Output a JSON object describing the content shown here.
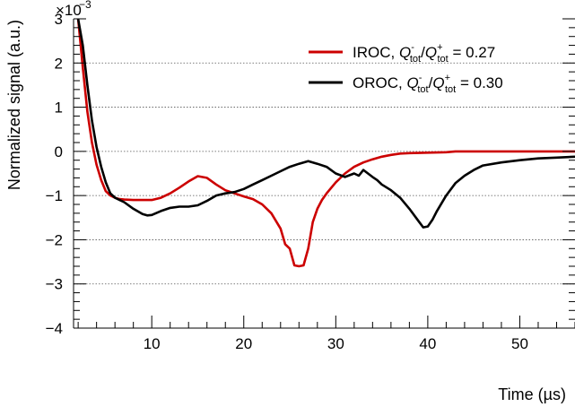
{
  "chart_data": {
    "type": "line",
    "xlabel": "Time (µs)",
    "ylabel": "Normalized signal (a.u.)",
    "y_exponent_label": "×10",
    "y_exponent_power": "−3",
    "xlim": [
      1.5,
      56
    ],
    "ylim": [
      -4,
      3
    ],
    "x_ticks": [
      10,
      20,
      30,
      40,
      50
    ],
    "x_tick_labels": [
      "10",
      "20",
      "30",
      "40",
      "50"
    ],
    "y_ticks": [
      -4,
      -3,
      -2,
      -1,
      0,
      1,
      2,
      3
    ],
    "y_tick_labels": [
      "−4",
      "−3",
      "−2",
      "−1",
      "0",
      "1",
      "2",
      "3"
    ],
    "grid": "horizontal dotted",
    "legend_position": "top-right",
    "series": [
      {
        "name": "IROC",
        "legend": {
          "prefix": "IROC, ",
          "q": "Q",
          "sup1": "-",
          "sub1": "tot",
          "slash": "/",
          "sup2": "+",
          "sub2": "tot",
          "suffix": " = 0.27"
        },
        "color": "#cc0000",
        "x": [
          2.0,
          2.5,
          3.0,
          3.5,
          4.0,
          4.5,
          5.0,
          5.5,
          6.0,
          6.5,
          7.0,
          8.0,
          9.0,
          10.0,
          11.0,
          12.0,
          13.0,
          14.0,
          15.0,
          16.0,
          17.0,
          18.0,
          19.0,
          20.0,
          21.0,
          22.0,
          23.0,
          24.0,
          24.5,
          25.0,
          25.5,
          26.0,
          26.5,
          27.0,
          27.5,
          28.0,
          28.5,
          29.0,
          30.0,
          31.0,
          32.0,
          33.0,
          34.0,
          35.0,
          36.0,
          37.0,
          38.0,
          40.0,
          42.0,
          43.0,
          46.0,
          50.0,
          56.0
        ],
        "y": [
          3.0,
          1.9,
          0.9,
          0.2,
          -0.3,
          -0.65,
          -0.9,
          -1.0,
          -1.05,
          -1.08,
          -1.09,
          -1.1,
          -1.1,
          -1.1,
          -1.05,
          -0.95,
          -0.82,
          -0.68,
          -0.56,
          -0.6,
          -0.75,
          -0.88,
          -0.95,
          -1.02,
          -1.08,
          -1.2,
          -1.4,
          -1.75,
          -2.1,
          -2.2,
          -2.58,
          -2.6,
          -2.58,
          -2.2,
          -1.6,
          -1.3,
          -1.1,
          -0.95,
          -0.7,
          -0.5,
          -0.35,
          -0.25,
          -0.18,
          -0.12,
          -0.08,
          -0.05,
          -0.04,
          -0.03,
          -0.02,
          0.0,
          0.0,
          0.0,
          0.0
        ]
      },
      {
        "name": "OROC",
        "legend": {
          "prefix": "OROC, ",
          "q": "Q",
          "sup1": "-",
          "sub1": "tot",
          "slash": "/",
          "sup2": "+",
          "sub2": "tot",
          "suffix": " = 0.30"
        },
        "color": "#000000",
        "x": [
          2.0,
          2.5,
          3.0,
          3.5,
          4.0,
          4.5,
          5.0,
          5.5,
          6.0,
          6.5,
          7.0,
          8.0,
          9.0,
          9.5,
          10.0,
          11.0,
          12.0,
          13.0,
          14.0,
          15.0,
          16.0,
          17.0,
          18.0,
          19.0,
          20.0,
          21.0,
          22.0,
          23.0,
          24.0,
          25.0,
          26.0,
          27.0,
          28.0,
          29.0,
          30.0,
          31.0,
          32.0,
          32.5,
          33.0,
          33.5,
          34.0,
          34.5,
          35.0,
          36.0,
          37.0,
          38.0,
          39.0,
          39.5,
          40.0,
          40.5,
          41.0,
          42.0,
          43.0,
          44.0,
          45.0,
          46.0,
          48.0,
          50.0,
          52.0,
          54.0,
          56.0
        ],
        "y": [
          3.0,
          2.4,
          1.5,
          0.7,
          0.1,
          -0.35,
          -0.7,
          -0.95,
          -1.05,
          -1.1,
          -1.15,
          -1.3,
          -1.42,
          -1.45,
          -1.44,
          -1.35,
          -1.28,
          -1.25,
          -1.25,
          -1.22,
          -1.12,
          -1.0,
          -0.95,
          -0.92,
          -0.85,
          -0.75,
          -0.65,
          -0.55,
          -0.45,
          -0.35,
          -0.28,
          -0.22,
          -0.28,
          -0.35,
          -0.5,
          -0.58,
          -0.5,
          -0.55,
          -0.42,
          -0.5,
          -0.58,
          -0.65,
          -0.75,
          -0.88,
          -1.05,
          -1.3,
          -1.58,
          -1.72,
          -1.7,
          -1.55,
          -1.35,
          -1.0,
          -0.72,
          -0.55,
          -0.42,
          -0.32,
          -0.25,
          -0.2,
          -0.16,
          -0.14,
          -0.12
        ]
      }
    ]
  }
}
